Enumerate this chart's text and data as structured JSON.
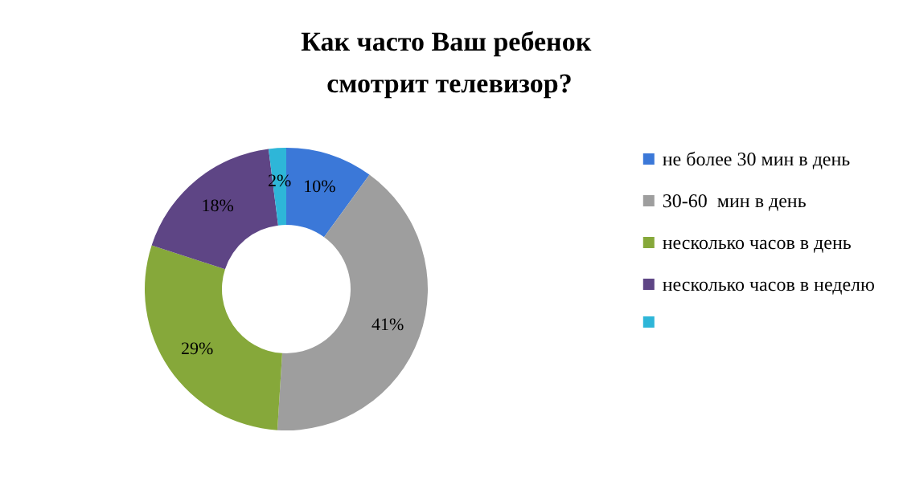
{
  "chart_data": {
    "type": "donut",
    "title": "Как часто Ваш ребенок смотрит телевизор?",
    "categories": [
      "не более 30 мин в день",
      "30-60  мин в день",
      "несколько часов в день",
      "несколько часов в неделю",
      null
    ],
    "values": [
      10,
      41,
      29,
      18,
      2
    ],
    "colors": [
      "#3b78d8",
      "#9e9e9e",
      "#86a83a",
      "#5e4585",
      "#2eb6d8"
    ],
    "value_labels": [
      "10%",
      "41%",
      "29%",
      "18%",
      "2%"
    ],
    "legend": "right"
  }
}
